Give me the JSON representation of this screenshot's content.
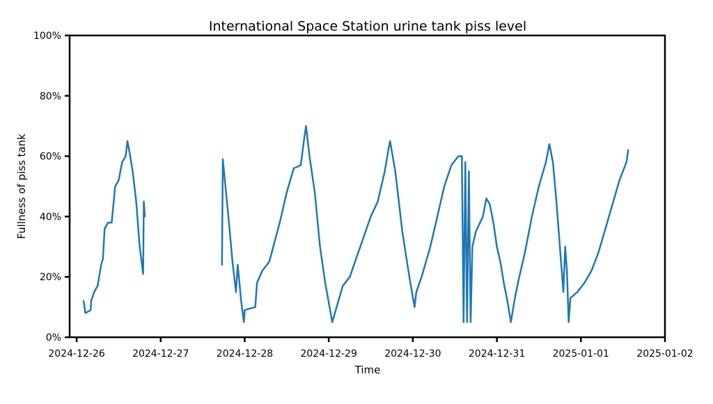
{
  "chart_data": {
    "type": "line",
    "title": "International Space Station urine tank piss level",
    "xlabel": "Time",
    "ylabel": "Fullness of piss tank",
    "xlim": [
      "2024-12-25T22:00",
      "2025-01-02T00:00"
    ],
    "ylim": [
      0,
      100
    ],
    "x_ticks": [
      "2024-12-26",
      "2024-12-27",
      "2024-12-28",
      "2024-12-29",
      "2024-12-30",
      "2024-12-31",
      "2025-01-01",
      "2025-01-02"
    ],
    "y_ticks": [
      {
        "value": 0,
        "label": "0%"
      },
      {
        "value": 20,
        "label": "20%"
      },
      {
        "value": 40,
        "label": "40%"
      },
      {
        "value": 60,
        "label": "60%"
      },
      {
        "value": 80,
        "label": "80%"
      },
      {
        "value": 100,
        "label": "100%"
      }
    ],
    "grid": false,
    "line_color": "#1f77b4",
    "series": [
      {
        "segments": [
          [
            [
              "2024-12-26T02:00",
              12
            ],
            [
              "2024-12-26T02:30",
              8
            ],
            [
              "2024-12-26T04:00",
              9
            ],
            [
              "2024-12-26T04:10",
              12
            ],
            [
              "2024-12-26T05:00",
              15
            ],
            [
              "2024-12-26T06:00",
              17
            ],
            [
              "2024-12-26T07:00",
              24
            ],
            [
              "2024-12-26T07:30",
              26
            ],
            [
              "2024-12-26T08:00",
              36
            ],
            [
              "2024-12-26T09:00",
              38
            ],
            [
              "2024-12-26T10:00",
              38
            ],
            [
              "2024-12-26T11:00",
              50
            ],
            [
              "2024-12-26T12:00",
              52
            ],
            [
              "2024-12-26T13:00",
              58
            ],
            [
              "2024-12-26T14:00",
              60
            ],
            [
              "2024-12-26T14:30",
              65
            ],
            [
              "2024-12-26T15:00",
              62
            ],
            [
              "2024-12-26T16:00",
              55
            ],
            [
              "2024-12-26T17:00",
              45
            ],
            [
              "2024-12-26T18:00",
              30
            ],
            [
              "2024-12-26T19:00",
              21
            ],
            [
              "2024-12-26T19:10",
              45
            ],
            [
              "2024-12-26T19:30",
              40
            ]
          ],
          [
            [
              "2024-12-27T17:30",
              24
            ],
            [
              "2024-12-27T17:45",
              59
            ],
            [
              "2024-12-27T18:30",
              50
            ],
            [
              "2024-12-27T19:30",
              38
            ],
            [
              "2024-12-27T20:30",
              25
            ],
            [
              "2024-12-27T21:30",
              15
            ],
            [
              "2024-12-27T22:00",
              24
            ],
            [
              "2024-12-27T23:00",
              12
            ],
            [
              "2024-12-27T23:45",
              5
            ],
            [
              "2024-12-28T00:00",
              9
            ],
            [
              "2024-12-28T03:00",
              10
            ],
            [
              "2024-12-28T03:30",
              18
            ],
            [
              "2024-12-28T05:00",
              22
            ],
            [
              "2024-12-28T07:00",
              25
            ],
            [
              "2024-12-28T10:00",
              38
            ],
            [
              "2024-12-28T12:00",
              48
            ],
            [
              "2024-12-28T14:00",
              56
            ],
            [
              "2024-12-28T16:00",
              57
            ],
            [
              "2024-12-28T17:00",
              66
            ],
            [
              "2024-12-28T17:30",
              70
            ],
            [
              "2024-12-28T18:30",
              60
            ],
            [
              "2024-12-28T20:00",
              48
            ],
            [
              "2024-12-28T21:30",
              30
            ],
            [
              "2024-12-28T23:00",
              18
            ],
            [
              "2024-12-29T01:00",
              5
            ],
            [
              "2024-12-29T02:00",
              9
            ],
            [
              "2024-12-29T04:00",
              17
            ],
            [
              "2024-12-29T06:00",
              20
            ],
            [
              "2024-12-29T09:00",
              30
            ],
            [
              "2024-12-29T12:00",
              40
            ],
            [
              "2024-12-29T14:00",
              45
            ],
            [
              "2024-12-29T16:00",
              55
            ],
            [
              "2024-12-29T17:00",
              62
            ],
            [
              "2024-12-29T17:30",
              65
            ],
            [
              "2024-12-29T19:00",
              55
            ],
            [
              "2024-12-29T21:00",
              35
            ],
            [
              "2024-12-29T23:00",
              20
            ],
            [
              "2024-12-30T00:30",
              10
            ],
            [
              "2024-12-30T01:00",
              15
            ],
            [
              "2024-12-30T02:30",
              20
            ],
            [
              "2024-12-30T05:00",
              30
            ],
            [
              "2024-12-30T07:00",
              40
            ],
            [
              "2024-12-30T09:00",
              50
            ],
            [
              "2024-12-30T11:00",
              57
            ],
            [
              "2024-12-30T13:00",
              60
            ],
            [
              "2024-12-30T14:00",
              60
            ],
            [
              "2024-12-30T14:30",
              5
            ],
            [
              "2024-12-30T15:00",
              58
            ],
            [
              "2024-12-30T15:30",
              5
            ],
            [
              "2024-12-30T16:00",
              55
            ],
            [
              "2024-12-30T16:30",
              5
            ],
            [
              "2024-12-30T17:00",
              30
            ],
            [
              "2024-12-30T18:00",
              35
            ],
            [
              "2024-12-30T20:00",
              40
            ],
            [
              "2024-12-30T21:00",
              46
            ],
            [
              "2024-12-30T22:00",
              44
            ],
            [
              "2024-12-30T23:00",
              38
            ],
            [
              "2024-12-31T00:00",
              30
            ],
            [
              "2024-12-31T01:00",
              25
            ],
            [
              "2024-12-31T02:00",
              18
            ],
            [
              "2024-12-31T03:00",
              12
            ],
            [
              "2024-12-31T04:00",
              5
            ],
            [
              "2024-12-31T05:00",
              12
            ],
            [
              "2024-12-31T06:00",
              18
            ],
            [
              "2024-12-31T08:00",
              28
            ],
            [
              "2024-12-31T10:00",
              40
            ],
            [
              "2024-12-31T12:00",
              50
            ],
            [
              "2024-12-31T14:00",
              58
            ],
            [
              "2024-12-31T15:00",
              64
            ],
            [
              "2024-12-31T16:00",
              58
            ],
            [
              "2024-12-31T17:00",
              45
            ],
            [
              "2024-12-31T18:00",
              30
            ],
            [
              "2024-12-31T19:00",
              15
            ],
            [
              "2024-12-31T19:30",
              30
            ],
            [
              "2024-12-31T20:00",
              22
            ],
            [
              "2024-12-31T20:30",
              5
            ],
            [
              "2024-12-31T21:00",
              13
            ],
            [
              "2024-12-31T23:00",
              15
            ],
            [
              "2025-01-01T01:00",
              18
            ],
            [
              "2025-01-01T03:00",
              22
            ],
            [
              "2025-01-01T05:00",
              28
            ],
            [
              "2025-01-01T07:00",
              36
            ],
            [
              "2025-01-01T09:00",
              44
            ],
            [
              "2025-01-01T11:00",
              52
            ],
            [
              "2025-01-01T12:00",
              55
            ],
            [
              "2025-01-01T13:00",
              58
            ],
            [
              "2025-01-01T13:30",
              62
            ]
          ]
        ]
      }
    ]
  }
}
